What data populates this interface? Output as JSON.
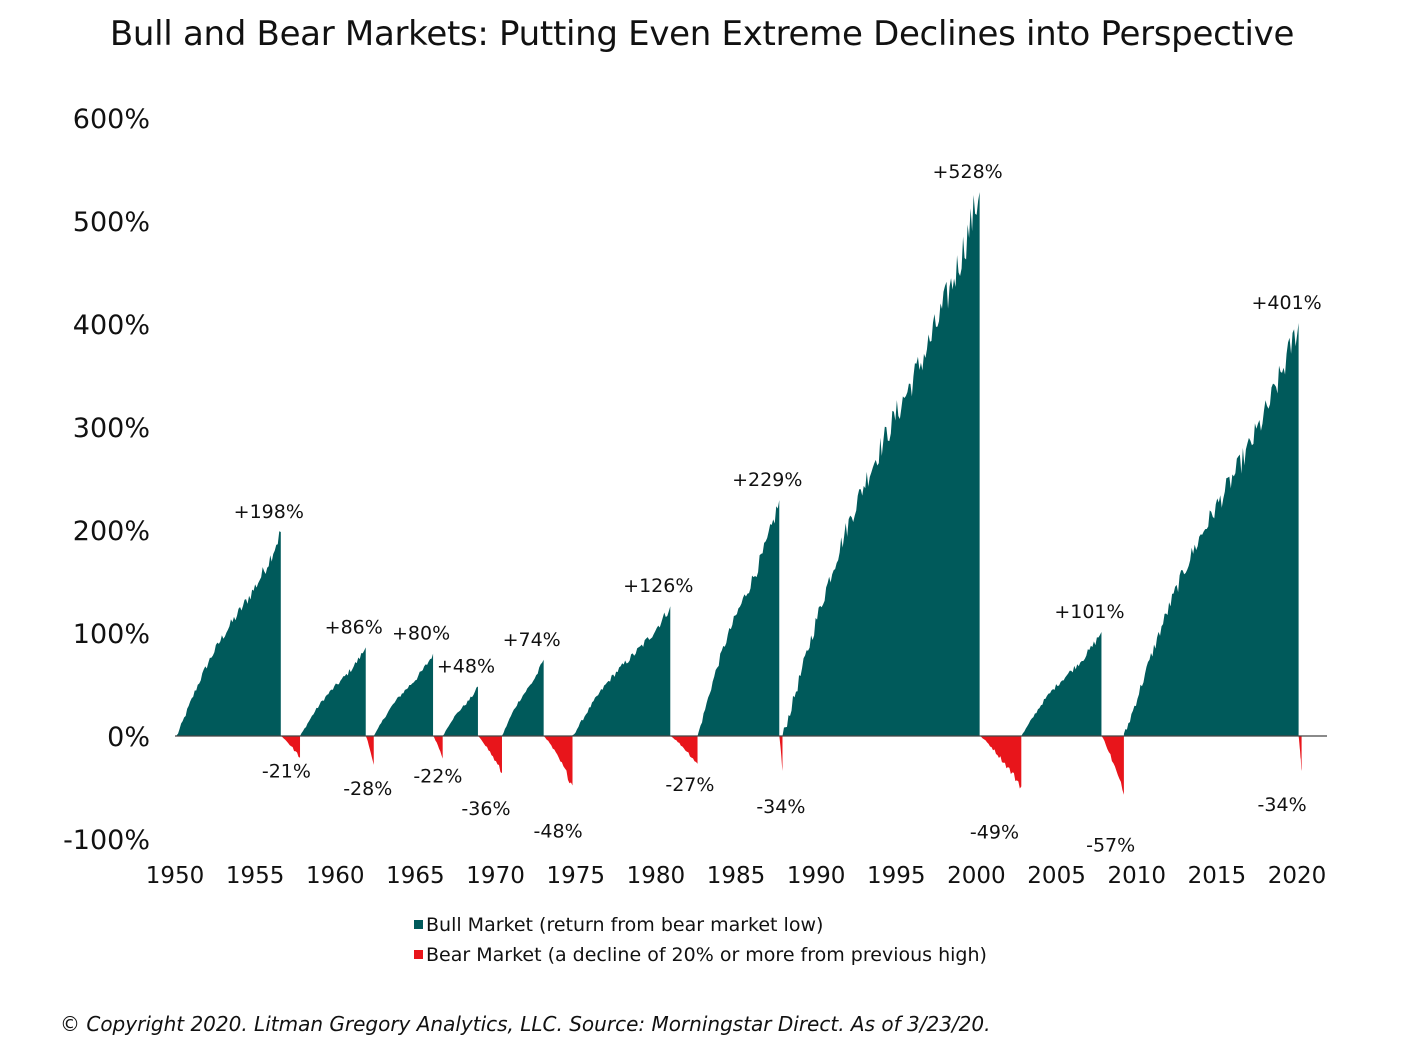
{
  "chart_data": {
    "type": "area",
    "title": "Bull and Bear Markets: Putting Even Extreme Declines into Perspective",
    "xlabel": "",
    "ylabel": "",
    "xlim": [
      1950,
      2020
    ],
    "ylim": [
      -100,
      600
    ],
    "y_ticks": [
      "600%",
      "500%",
      "400%",
      "300%",
      "200%",
      "100%",
      "0%",
      "-100%"
    ],
    "y_tick_values": [
      600,
      500,
      400,
      300,
      200,
      100,
      0,
      -100
    ],
    "x_ticks": [
      "1950",
      "1955",
      "1960",
      "1965",
      "1970",
      "1975",
      "1980",
      "1985",
      "1990",
      "1995",
      "2000",
      "2005",
      "2010",
      "2015",
      "2020"
    ],
    "x_tick_values": [
      1950,
      1955,
      1960,
      1965,
      1970,
      1975,
      1980,
      1985,
      1990,
      1995,
      2000,
      2005,
      2010,
      2015,
      2020
    ],
    "colors": {
      "bull": "#005a5b",
      "bear": "#e8151b"
    },
    "series": [
      {
        "name": "Bull Market (return from bear market low)",
        "segments": [
          {
            "start": 1950.1,
            "end": 1956.6,
            "peak": 198,
            "label": "+198%"
          },
          {
            "start": 1957.8,
            "end": 1961.9,
            "peak": 86,
            "label": "+86%"
          },
          {
            "start": 1962.4,
            "end": 1966.1,
            "peak": 80,
            "label": "+80%"
          },
          {
            "start": 1966.7,
            "end": 1968.9,
            "peak": 48,
            "label": "+48%"
          },
          {
            "start": 1970.4,
            "end": 1973.0,
            "peak": 74,
            "label": "+74%"
          },
          {
            "start": 1974.8,
            "end": 1980.9,
            "peak": 126,
            "label": "+126%"
          },
          {
            "start": 1982.6,
            "end": 1987.7,
            "peak": 229,
            "label": "+229%"
          },
          {
            "start": 1987.9,
            "end": 2000.2,
            "peak": 528,
            "label": "+528%"
          },
          {
            "start": 2002.8,
            "end": 2007.8,
            "peak": 101,
            "label": "+101%"
          },
          {
            "start": 2009.2,
            "end": 2020.1,
            "peak": 401,
            "label": "+401%"
          }
        ]
      },
      {
        "name": "Bear Market (a decline of 20% or more from previous high)",
        "segments": [
          {
            "start": 1956.6,
            "end": 1957.8,
            "trough": -21,
            "label": "-21%"
          },
          {
            "start": 1961.9,
            "end": 1962.4,
            "trough": -28,
            "label": "-28%"
          },
          {
            "start": 1966.1,
            "end": 1966.7,
            "trough": -22,
            "label": "-22%"
          },
          {
            "start": 1968.9,
            "end": 1970.4,
            "trough": -36,
            "label": "-36%"
          },
          {
            "start": 1973.0,
            "end": 1974.8,
            "trough": -48,
            "label": "-48%"
          },
          {
            "start": 1980.9,
            "end": 1982.6,
            "trough": -27,
            "label": "-27%"
          },
          {
            "start": 1987.7,
            "end": 1987.9,
            "trough": -34,
            "label": "-34%"
          },
          {
            "start": 2000.2,
            "end": 2002.8,
            "trough": -49,
            "label": "-49%"
          },
          {
            "start": 2007.8,
            "end": 2009.2,
            "trough": -57,
            "label": "-57%"
          },
          {
            "start": 2020.1,
            "end": 2020.2,
            "trough": -34,
            "label": "-34%"
          }
        ]
      }
    ],
    "legend": [
      {
        "label": "Bull Market (return from bear market low)",
        "color": "#005a5b"
      },
      {
        "label": "Bear Market (a decline of 20% or more from previous high)",
        "color": "#e8151b"
      }
    ],
    "legend_position": "bottom-center",
    "grid": false
  },
  "footer": "© Copyright 2020. Litman Gregory Analytics, LLC. Source: Morningstar Direct. As of 3/23/20."
}
